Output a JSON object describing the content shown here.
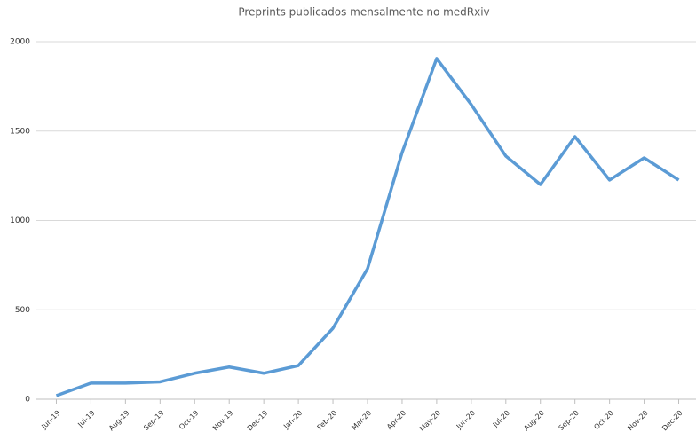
{
  "chart_data": {
    "type": "line",
    "title": "Preprints publicados mensalmente no medRxiv",
    "categories": [
      "Jun-19",
      "Jul-19",
      "Aug-19",
      "Sep-19",
      "Oct-19",
      "Nov-19",
      "Dec-19",
      "Jan-20",
      "Feb-20",
      "Mar-20",
      "Apr-20",
      "May-20",
      "Jun-20",
      "Jul-20",
      "Aug-20",
      "Sep-20",
      "Oct-20",
      "Nov-20",
      "Dec-20"
    ],
    "series": [
      {
        "name": "Preprints",
        "color": "#5b9bd5",
        "values": [
          20,
          90,
          90,
          97,
          145,
          180,
          145,
          188,
          397,
          730,
          1380,
          1906,
          1648,
          1360,
          1201,
          1469,
          1226,
          1350,
          1226
        ]
      }
    ],
    "ylim": [
      0,
      2000
    ],
    "yticks": [
      0,
      500,
      1000,
      1500,
      2000
    ],
    "grid": true
  }
}
